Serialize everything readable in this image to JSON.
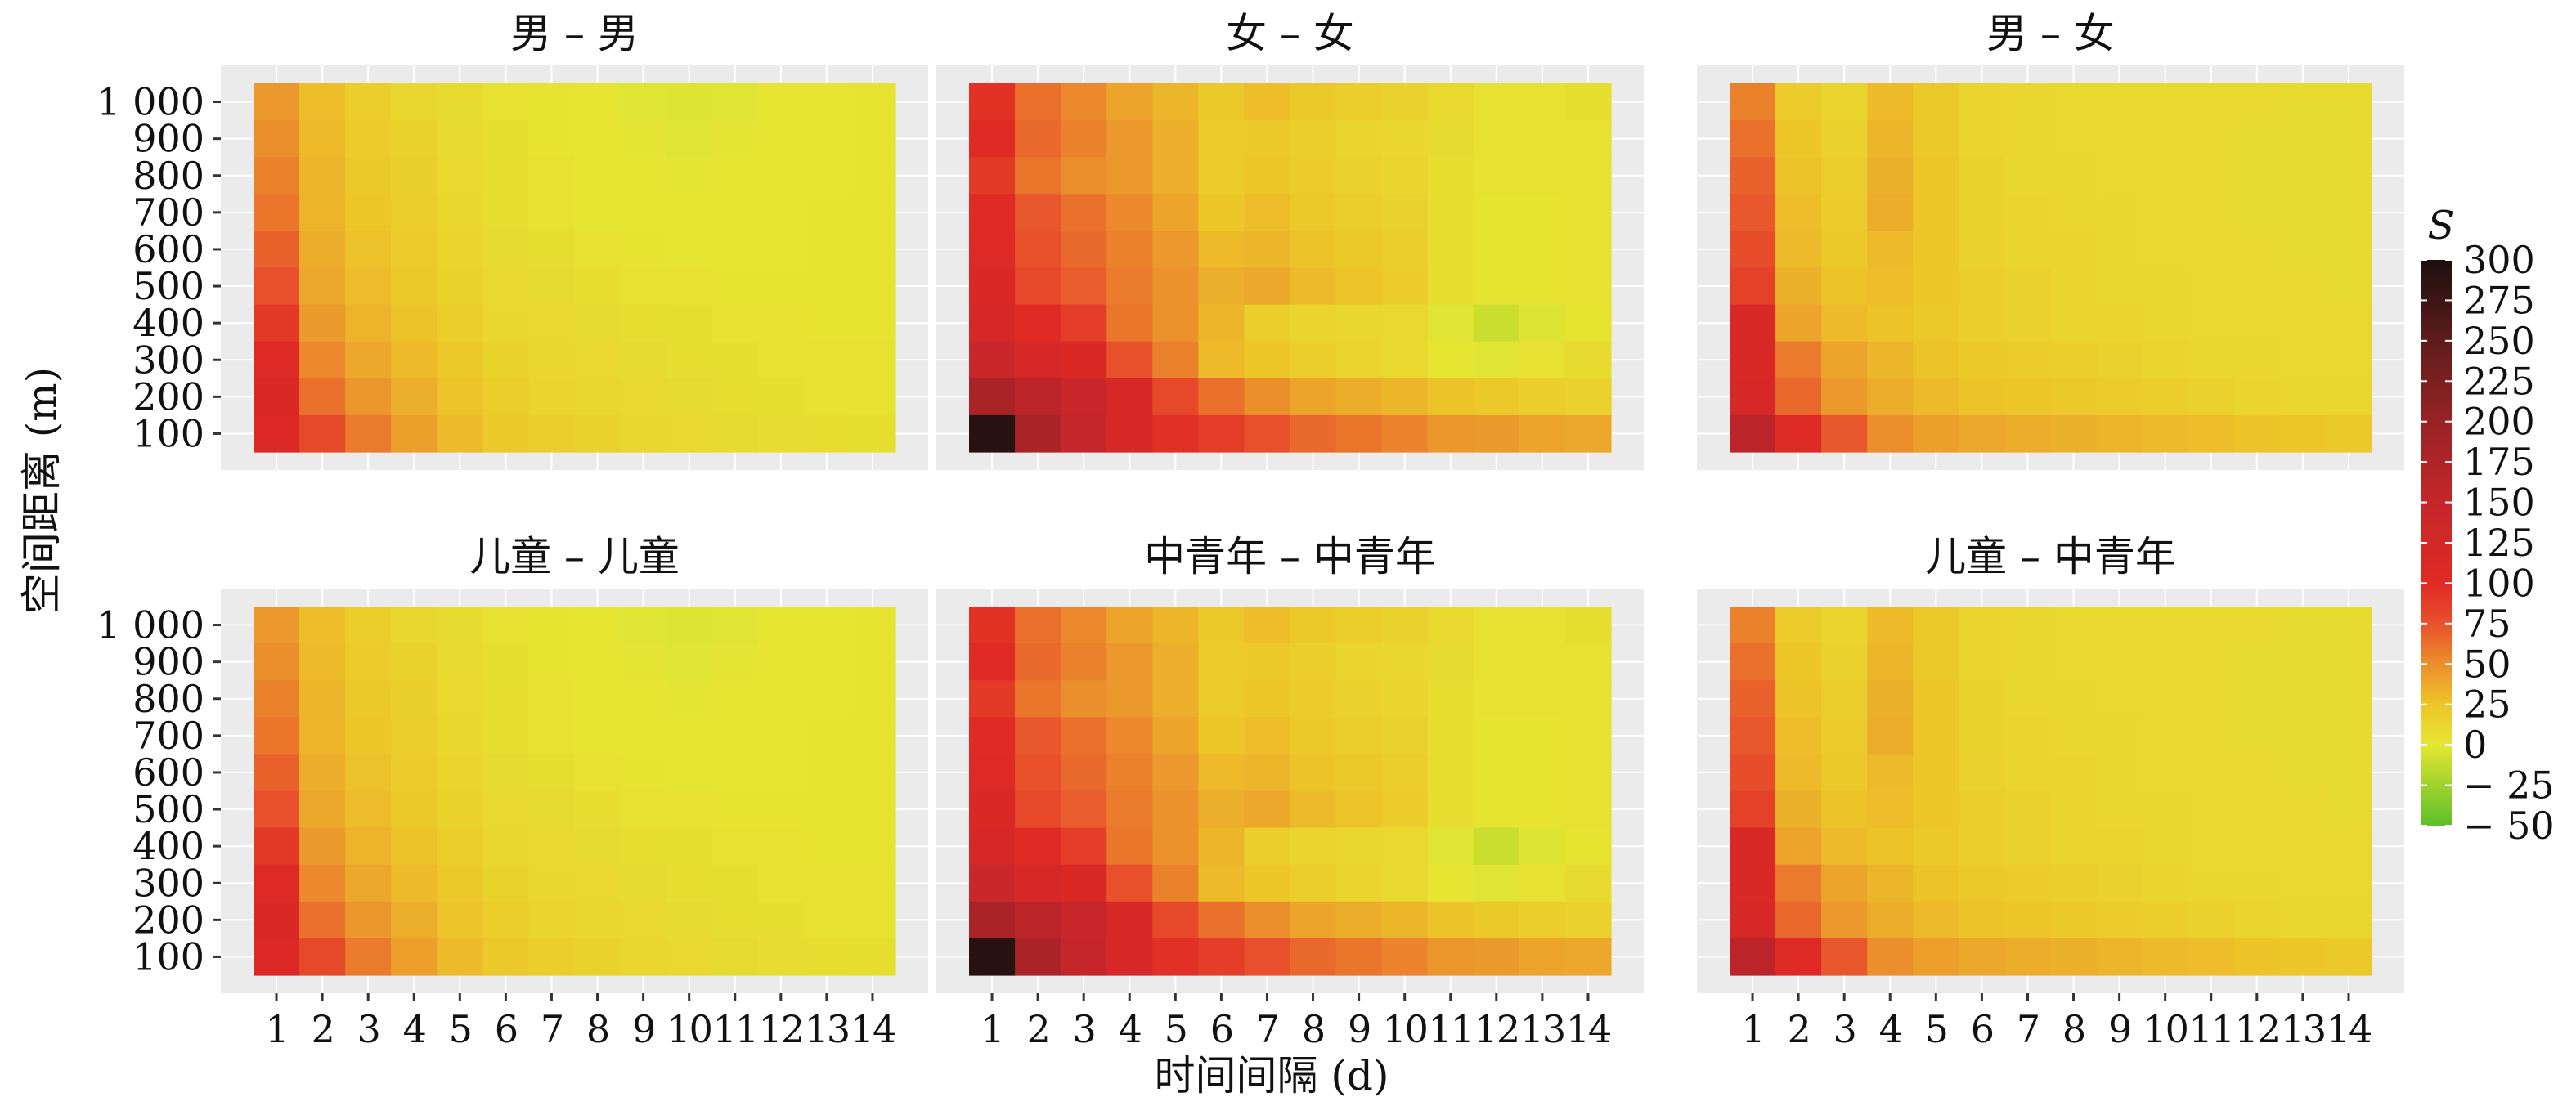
{
  "chart_data": {
    "type": "heatmap",
    "xlabel": "时间间隔 (d)",
    "ylabel": "空间距离 (m)",
    "x": [
      1,
      2,
      3,
      4,
      5,
      6,
      7,
      8,
      9,
      10,
      11,
      12,
      13,
      14
    ],
    "y": [
      100,
      200,
      300,
      400,
      500,
      600,
      700,
      800,
      900,
      1000
    ],
    "y_tick_labels": [
      "100",
      "200",
      "300",
      "400",
      "500",
      "600",
      "700",
      "800",
      "900",
      "1 000"
    ],
    "legend": {
      "title": "S",
      "position": "right",
      "ticks": [
        300,
        275,
        250,
        225,
        200,
        175,
        150,
        125,
        100,
        75,
        50,
        25,
        0,
        -25,
        -50
      ],
      "tick_labels": [
        "300",
        "275",
        "250",
        "225",
        "200",
        "175",
        "150",
        "125",
        "100",
        "75",
        "50",
        "25",
        "0",
        "− 25",
        "− 50"
      ],
      "range": [
        -50,
        300
      ],
      "colors": [
        [
          -50,
          "#5cbf2a"
        ],
        [
          0,
          "#e6e632"
        ],
        [
          25,
          "#edc52a"
        ],
        [
          50,
          "#eb8e2c"
        ],
        [
          75,
          "#e8512c"
        ],
        [
          100,
          "#e02a24"
        ],
        [
          150,
          "#c4262b"
        ],
        [
          200,
          "#982324"
        ],
        [
          250,
          "#5e1c1b"
        ],
        [
          300,
          "#1b100e"
        ]
      ]
    },
    "grid": true,
    "panels": [
      {
        "title": "男 – 男",
        "rows_1000_to_100": [
          [
            45,
            28,
            18,
            12,
            8,
            4,
            2,
            0,
            -2,
            -3,
            -2,
            0,
            1,
            2
          ],
          [
            50,
            30,
            20,
            15,
            9,
            5,
            2,
            0,
            -1,
            -2,
            -1,
            0,
            1,
            2
          ],
          [
            55,
            32,
            22,
            17,
            10,
            6,
            3,
            1,
            0,
            -1,
            0,
            1,
            1,
            2
          ],
          [
            60,
            33,
            24,
            18,
            11,
            6,
            3,
            1,
            0,
            0,
            0,
            1,
            2,
            2
          ],
          [
            68,
            36,
            27,
            20,
            13,
            8,
            5,
            3,
            2,
            1,
            1,
            1,
            2,
            2
          ],
          [
            75,
            38,
            29,
            22,
            15,
            10,
            8,
            6,
            4,
            3,
            2,
            2,
            2,
            2
          ],
          [
            90,
            44,
            33,
            26,
            18,
            12,
            10,
            8,
            6,
            5,
            3,
            3,
            2,
            2
          ],
          [
            105,
            52,
            38,
            30,
            22,
            15,
            12,
            10,
            8,
            6,
            5,
            4,
            3,
            3
          ],
          [
            110,
            62,
            46,
            35,
            25,
            18,
            14,
            12,
            10,
            8,
            6,
            5,
            4,
            4
          ],
          [
            108,
            80,
            58,
            42,
            30,
            22,
            18,
            15,
            12,
            10,
            8,
            7,
            6,
            5
          ]
        ]
      },
      {
        "title": "女 – 女",
        "rows_1000_to_100": [
          [
            95,
            62,
            52,
            40,
            32,
            22,
            28,
            22,
            18,
            16,
            10,
            4,
            4,
            5
          ],
          [
            100,
            65,
            55,
            45,
            35,
            20,
            22,
            18,
            14,
            12,
            8,
            4,
            3,
            4
          ],
          [
            90,
            60,
            50,
            45,
            35,
            20,
            24,
            20,
            16,
            14,
            6,
            3,
            3,
            4
          ],
          [
            100,
            72,
            62,
            52,
            40,
            24,
            28,
            22,
            18,
            16,
            6,
            2,
            2,
            3
          ],
          [
            105,
            75,
            65,
            55,
            45,
            30,
            32,
            26,
            22,
            18,
            6,
            2,
            2,
            3
          ],
          [
            110,
            80,
            70,
            58,
            48,
            35,
            38,
            30,
            25,
            20,
            6,
            2,
            2,
            3
          ],
          [
            120,
            100,
            88,
            60,
            48,
            32,
            18,
            14,
            12,
            10,
            -2,
            -10,
            -3,
            2
          ],
          [
            140,
            120,
            110,
            75,
            55,
            30,
            24,
            18,
            14,
            10,
            0,
            -2,
            4,
            8
          ],
          [
            180,
            160,
            145,
            118,
            80,
            62,
            50,
            40,
            36,
            32,
            26,
            22,
            18,
            16
          ],
          [
            290,
            180,
            150,
            118,
            96,
            88,
            76,
            65,
            60,
            54,
            46,
            44,
            40,
            38
          ]
        ]
      },
      {
        "title": "男 – 女",
        "rows_1000_to_100": [
          [
            55,
            20,
            14,
            30,
            22,
            14,
            12,
            10,
            10,
            10,
            10,
            10,
            8,
            8
          ],
          [
            62,
            24,
            16,
            32,
            22,
            14,
            12,
            10,
            10,
            10,
            10,
            8,
            8,
            8
          ],
          [
            68,
            26,
            18,
            34,
            24,
            15,
            12,
            12,
            10,
            10,
            10,
            8,
            8,
            8
          ],
          [
            72,
            28,
            20,
            36,
            24,
            15,
            13,
            12,
            12,
            10,
            10,
            8,
            8,
            8
          ],
          [
            78,
            30,
            22,
            30,
            24,
            16,
            14,
            13,
            12,
            10,
            10,
            10,
            8,
            8
          ],
          [
            85,
            34,
            26,
            28,
            24,
            18,
            16,
            14,
            12,
            12,
            10,
            10,
            10,
            8
          ],
          [
            112,
            40,
            30,
            26,
            22,
            18,
            16,
            14,
            14,
            12,
            10,
            10,
            10,
            10
          ],
          [
            115,
            58,
            40,
            32,
            26,
            22,
            20,
            18,
            16,
            14,
            12,
            12,
            10,
            10
          ],
          [
            118,
            65,
            45,
            36,
            30,
            26,
            24,
            22,
            20,
            18,
            16,
            14,
            12,
            12
          ],
          [
            160,
            105,
            72,
            50,
            42,
            38,
            36,
            34,
            32,
            30,
            28,
            26,
            24,
            22
          ]
        ]
      },
      {
        "title": "儿童 – 儿童",
        "rows_1000_to_100": [
          [
            45,
            28,
            18,
            12,
            8,
            4,
            2,
            0,
            -2,
            -3,
            -2,
            0,
            1,
            2
          ],
          [
            50,
            30,
            20,
            15,
            9,
            5,
            2,
            0,
            -1,
            -2,
            -1,
            0,
            1,
            2
          ],
          [
            55,
            32,
            22,
            17,
            10,
            6,
            3,
            1,
            0,
            -1,
            0,
            1,
            1,
            2
          ],
          [
            60,
            33,
            24,
            18,
            11,
            6,
            3,
            1,
            0,
            0,
            0,
            1,
            2,
            2
          ],
          [
            68,
            36,
            27,
            20,
            13,
            8,
            5,
            3,
            2,
            1,
            1,
            1,
            2,
            2
          ],
          [
            75,
            38,
            29,
            22,
            15,
            10,
            8,
            6,
            4,
            3,
            2,
            2,
            2,
            2
          ],
          [
            90,
            44,
            33,
            26,
            18,
            12,
            10,
            8,
            6,
            5,
            3,
            3,
            2,
            2
          ],
          [
            105,
            52,
            38,
            30,
            22,
            15,
            12,
            10,
            8,
            6,
            5,
            4,
            3,
            3
          ],
          [
            110,
            62,
            46,
            35,
            25,
            18,
            14,
            12,
            10,
            8,
            6,
            5,
            4,
            4
          ],
          [
            108,
            80,
            58,
            42,
            30,
            22,
            18,
            15,
            12,
            10,
            8,
            7,
            6,
            5
          ]
        ]
      },
      {
        "title": "中青年 – 中青年",
        "rows_1000_to_100": [
          [
            95,
            62,
            52,
            40,
            32,
            22,
            28,
            22,
            18,
            16,
            10,
            4,
            4,
            5
          ],
          [
            100,
            65,
            55,
            45,
            35,
            20,
            22,
            18,
            14,
            12,
            8,
            4,
            3,
            4
          ],
          [
            90,
            60,
            50,
            45,
            35,
            20,
            24,
            20,
            16,
            14,
            6,
            3,
            3,
            4
          ],
          [
            100,
            72,
            62,
            52,
            40,
            24,
            28,
            22,
            18,
            16,
            6,
            2,
            2,
            3
          ],
          [
            105,
            75,
            65,
            55,
            45,
            30,
            32,
            26,
            22,
            18,
            6,
            2,
            2,
            3
          ],
          [
            110,
            80,
            70,
            58,
            48,
            35,
            38,
            30,
            25,
            20,
            6,
            2,
            2,
            3
          ],
          [
            120,
            100,
            88,
            60,
            48,
            32,
            18,
            14,
            12,
            10,
            -2,
            -10,
            -3,
            2
          ],
          [
            140,
            120,
            110,
            75,
            55,
            30,
            24,
            18,
            14,
            10,
            0,
            -2,
            4,
            8
          ],
          [
            180,
            160,
            145,
            118,
            80,
            62,
            50,
            40,
            36,
            32,
            26,
            22,
            18,
            16
          ],
          [
            290,
            180,
            150,
            118,
            96,
            88,
            76,
            65,
            60,
            54,
            46,
            44,
            40,
            38
          ]
        ]
      },
      {
        "title": "儿童 – 中青年",
        "rows_1000_to_100": [
          [
            55,
            20,
            14,
            30,
            22,
            14,
            12,
            10,
            10,
            10,
            10,
            10,
            8,
            8
          ],
          [
            62,
            24,
            16,
            32,
            22,
            14,
            12,
            10,
            10,
            10,
            10,
            8,
            8,
            8
          ],
          [
            68,
            26,
            18,
            34,
            24,
            15,
            12,
            12,
            10,
            10,
            10,
            8,
            8,
            8
          ],
          [
            72,
            28,
            20,
            36,
            24,
            15,
            13,
            12,
            12,
            10,
            10,
            8,
            8,
            8
          ],
          [
            78,
            30,
            22,
            30,
            24,
            16,
            14,
            13,
            12,
            10,
            10,
            10,
            8,
            8
          ],
          [
            85,
            34,
            26,
            28,
            24,
            18,
            16,
            14,
            12,
            12,
            10,
            10,
            10,
            8
          ],
          [
            112,
            40,
            30,
            26,
            22,
            18,
            16,
            14,
            14,
            12,
            10,
            10,
            10,
            10
          ],
          [
            115,
            58,
            40,
            32,
            26,
            22,
            20,
            18,
            16,
            14,
            12,
            12,
            10,
            10
          ],
          [
            118,
            65,
            45,
            36,
            30,
            26,
            24,
            22,
            20,
            18,
            16,
            14,
            12,
            12
          ],
          [
            160,
            105,
            72,
            50,
            42,
            38,
            36,
            34,
            32,
            30,
            28,
            26,
            24,
            22
          ]
        ]
      }
    ]
  }
}
